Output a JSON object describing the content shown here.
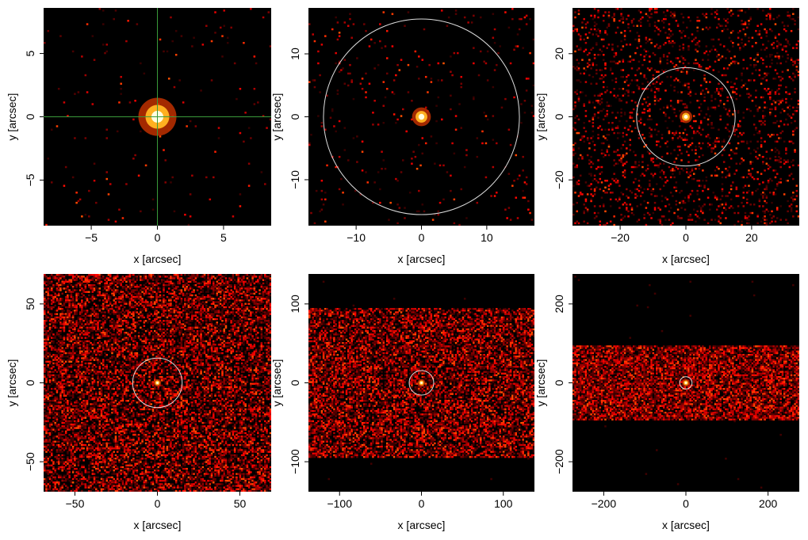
{
  "chart_data": [
    {
      "type": "heatmap",
      "xlabel": "x [arcsec]",
      "ylabel": "y [arcsec]",
      "xlim": [
        -8.6,
        8.6
      ],
      "ylim": [
        -8.6,
        8.6
      ],
      "xticks": [
        -5,
        0,
        5
      ],
      "yticks": [
        -5,
        0,
        5
      ],
      "xtick_labels": [
        "−5",
        "0",
        "5"
      ],
      "ytick_labels": [
        "−5",
        "0",
        "5"
      ],
      "crosshair": {
        "x": 0,
        "y": 0,
        "color": "#3a9a3a"
      },
      "source": {
        "x": 0,
        "y": 0,
        "radius": 0.9
      },
      "background_level": 0.01,
      "band_halfwidth": null,
      "circle_radius": null
    },
    {
      "type": "heatmap",
      "xlabel": "x [arcsec]",
      "ylabel": "y [arcsec]",
      "xlim": [
        -17.3,
        17.3
      ],
      "ylim": [
        -17.3,
        17.3
      ],
      "xticks": [
        -10,
        0,
        10
      ],
      "yticks": [
        -10,
        0,
        10
      ],
      "xtick_labels": [
        "−10",
        "0",
        "10"
      ],
      "ytick_labels": [
        "−10",
        "0",
        "10"
      ],
      "crosshair": null,
      "source": {
        "x": 0,
        "y": 0,
        "radius": 0.9
      },
      "background_level": 0.02,
      "band_halfwidth": null,
      "circle_radius": 15
    },
    {
      "type": "heatmap",
      "xlabel": "x [arcsec]",
      "ylabel": "y [arcsec]",
      "xlim": [
        -34.5,
        34.5
      ],
      "ylim": [
        -34.5,
        34.5
      ],
      "xticks": [
        -20,
        0,
        20
      ],
      "yticks": [
        -20,
        0,
        20
      ],
      "xtick_labels": [
        "−20",
        "0",
        "20"
      ],
      "ytick_labels": [
        "−20",
        "0",
        "20"
      ],
      "crosshair": null,
      "source": {
        "x": 0,
        "y": 0,
        "radius": 1.2
      },
      "background_level": 0.12,
      "band_halfwidth": null,
      "circle_radius": 15
    },
    {
      "type": "heatmap",
      "xlabel": "x [arcsec]",
      "ylabel": "y [arcsec]",
      "xlim": [
        -69,
        69
      ],
      "ylim": [
        -69,
        69
      ],
      "xticks": [
        -50,
        0,
        50
      ],
      "yticks": [
        -50,
        0,
        50
      ],
      "xtick_labels": [
        "−50",
        "0",
        "50"
      ],
      "ytick_labels": [
        "−50",
        "0",
        "50"
      ],
      "crosshair": null,
      "source": {
        "x": 0,
        "y": 0,
        "radius": 1.2
      },
      "background_level": 0.55,
      "band_halfwidth": null,
      "circle_radius": 15
    },
    {
      "type": "heatmap",
      "xlabel": "x [arcsec]",
      "ylabel": "y [arcsec]",
      "xlim": [
        -138,
        138
      ],
      "ylim": [
        -138,
        138
      ],
      "xticks": [
        -100,
        0,
        100
      ],
      "yticks": [
        -100,
        0,
        100
      ],
      "xtick_labels": [
        "−100",
        "0",
        "100"
      ],
      "ytick_labels": [
        "−100",
        "0",
        "100"
      ],
      "crosshair": null,
      "source": {
        "x": 0,
        "y": 0,
        "radius": 2.5
      },
      "background_level": 0.6,
      "band_halfwidth": 95,
      "circle_radius": 15
    },
    {
      "type": "heatmap",
      "xlabel": "x [arcsec]",
      "ylabel": "y [arcsec]",
      "xlim": [
        -276,
        276
      ],
      "ylim": [
        -276,
        276
      ],
      "xticks": [
        -200,
        0,
        200
      ],
      "yticks": [
        -200,
        0,
        200
      ],
      "xtick_labels": [
        "−200",
        "0",
        "200"
      ],
      "ytick_labels": [
        "−200",
        "0",
        "200"
      ],
      "crosshair": null,
      "source": {
        "x": 0,
        "y": 0,
        "radius": 5
      },
      "background_level": 0.75,
      "band_halfwidth": 95,
      "circle_radius": 15
    }
  ]
}
